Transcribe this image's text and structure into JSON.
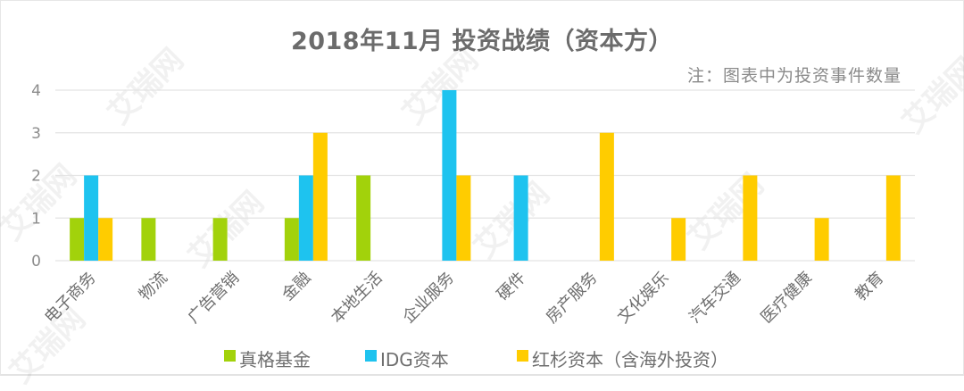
{
  "title": "2018年11月 投资战绩（资本方）",
  "note": "注：图表中为投资事件数量",
  "watermark": "艾瑞网",
  "colors": {
    "zhenge": "#A2D20B",
    "idg": "#1EC3EF",
    "sequoia": "#FFCC00",
    "grid": "#e3e3e3",
    "text": "#6e6e6e"
  },
  "legend": [
    {
      "label": "真格基金",
      "color": "#A2D20B"
    },
    {
      "label": "IDG资本",
      "color": "#1EC3EF"
    },
    {
      "label": "红杉资本（含海外投资）",
      "color": "#FFCC00"
    }
  ],
  "chart_data": {
    "type": "bar",
    "title": "2018年11月 投资战绩（资本方）",
    "subtitle": "注：图表中为投资事件数量",
    "xlabel": "",
    "ylabel": "",
    "ylim": [
      0,
      4
    ],
    "yticks": [
      0,
      1,
      2,
      3,
      4
    ],
    "grid": true,
    "legend_position": "bottom",
    "categories": [
      "电子商务",
      "物流",
      "广告营销",
      "金融",
      "本地生活",
      "企业服务",
      "硬件",
      "房产服务",
      "文化娱乐",
      "汽车交通",
      "医疗健康",
      "教育"
    ],
    "series": [
      {
        "name": "真格基金",
        "color": "#A2D20B",
        "values": [
          1,
          1,
          1,
          1,
          2,
          0,
          0,
          0,
          0,
          0,
          0,
          0
        ]
      },
      {
        "name": "IDG资本",
        "color": "#1EC3EF",
        "values": [
          2,
          0,
          0,
          2,
          0,
          4,
          2,
          0,
          0,
          0,
          0,
          0
        ]
      },
      {
        "name": "红杉资本（含海外投资）",
        "color": "#FFCC00",
        "values": [
          1,
          0,
          0,
          3,
          0,
          2,
          0,
          3,
          1,
          2,
          1,
          2
        ]
      }
    ]
  }
}
